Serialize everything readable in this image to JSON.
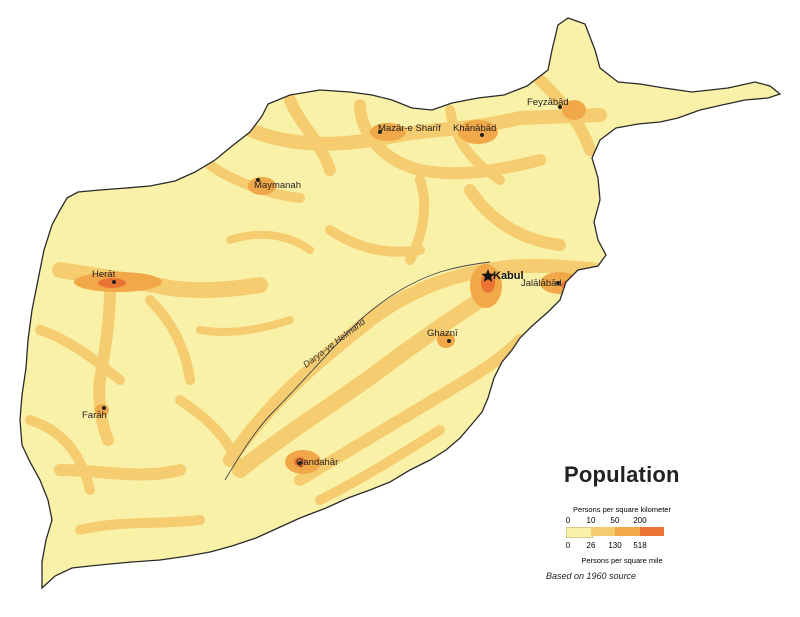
{
  "map": {
    "colors": {
      "background": "#ffffff",
      "band_0_10": "#f9f1a8",
      "band_10_50": "#f5cd70",
      "band_50_200": "#f0a848",
      "band_200_plus": "#ea7434",
      "border": "#2a2a2a",
      "river": "#444444"
    },
    "river_label": "Darya-ye Helmand",
    "capital_icon": "star-icon",
    "city_icon": "dot-icon",
    "capital": {
      "name": "Kabul"
    },
    "cities": [
      {
        "name": "Feyzābād"
      },
      {
        "name": "Mazār-e Sharīf"
      },
      {
        "name": "Khānābād"
      },
      {
        "name": "Maymanah"
      },
      {
        "name": "Herāt"
      },
      {
        "name": "Jalālābād"
      },
      {
        "name": "Ghaznī"
      },
      {
        "name": "Farāh"
      },
      {
        "name": "Qandahār"
      }
    ]
  },
  "legend": {
    "title": "Population",
    "km_label": "Persons per square kilometer",
    "km_ticks": [
      "0",
      "10",
      "50",
      "200"
    ],
    "mile_ticks": [
      "0",
      "26",
      "130",
      "518"
    ],
    "mile_label": "Persons per square mile",
    "source_note": "Based on 1960 source"
  }
}
